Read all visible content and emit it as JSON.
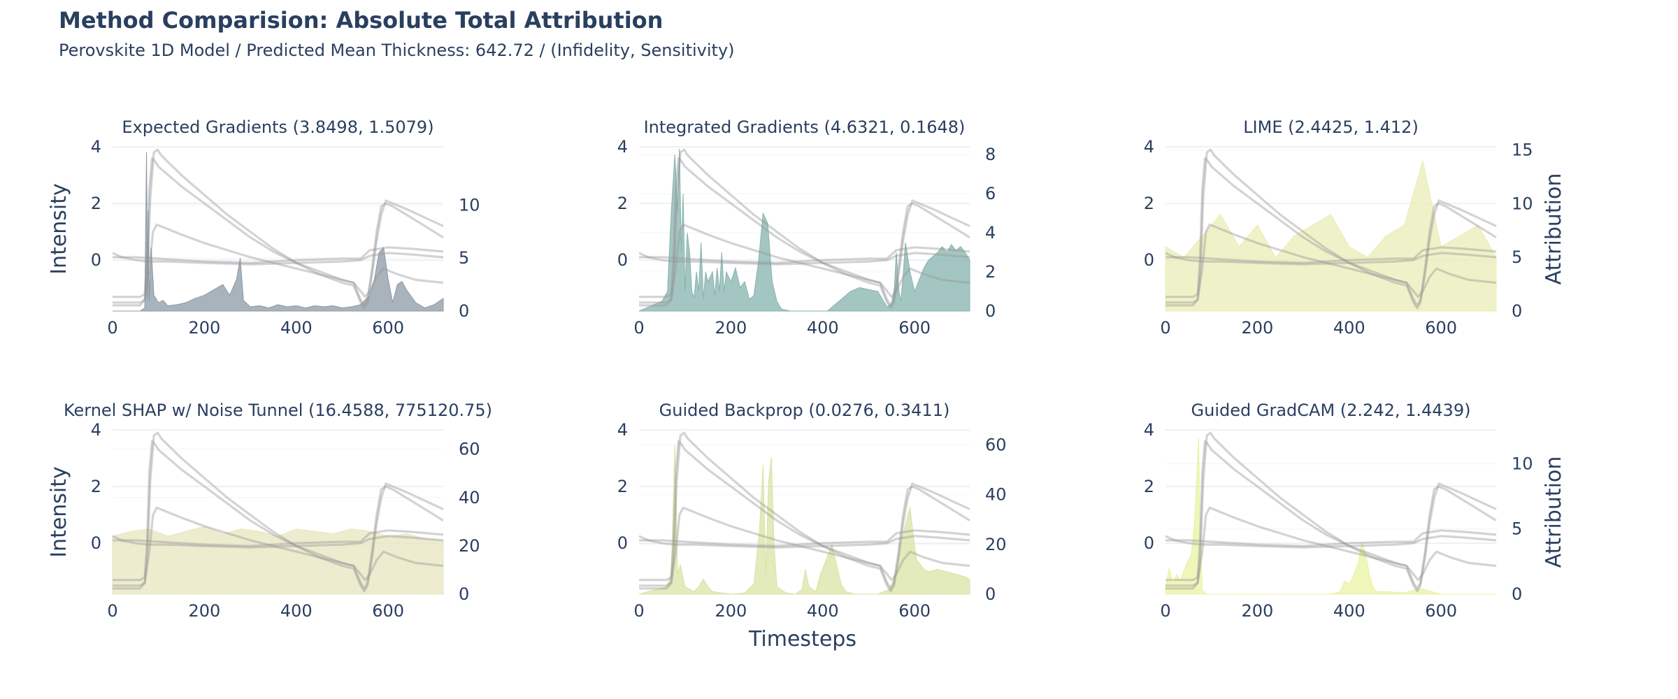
{
  "figure": {
    "title": "Method Comparision: Absolute Total Attribution",
    "subtitle": "Perovskite 1D Model / Predicted Mean Thickness: 642.72 / (Infidelity, Sensitivity)",
    "xlabel": "Timesteps",
    "ylabel_left": "Intensity",
    "ylabel_right": "Attribution"
  },
  "chart_data": [
    {
      "type": "area",
      "title": "Expected Gradients (3.8498, 1.5079)",
      "method": "Expected Gradients",
      "infidelity": 3.8498,
      "sensitivity": 1.5079,
      "xlim": [
        0,
        720
      ],
      "x_ticks": [
        0,
        200,
        400,
        600
      ],
      "y_left_ticks": [
        0,
        2,
        4
      ],
      "y_left_range": [
        -1.8,
        4.0
      ],
      "y_right_ticks": [
        0,
        5,
        10
      ],
      "y_right_range": [
        0,
        15.5
      ],
      "ylabel_left": "Intensity",
      "ylabel_right": "",
      "fill_color": "#8c99a6",
      "attribution": {
        "x": [
          0,
          60,
          70,
          74,
          76,
          78,
          80,
          84,
          90,
          100,
          110,
          120,
          140,
          160,
          180,
          200,
          220,
          240,
          255,
          270,
          278,
          285,
          300,
          320,
          340,
          360,
          380,
          400,
          420,
          440,
          460,
          480,
          500,
          520,
          540,
          560,
          570,
          580,
          590,
          600,
          610,
          620,
          630,
          640,
          660,
          680,
          700,
          720
        ],
        "y": [
          0,
          0,
          0.3,
          15,
          1,
          9.5,
          1,
          6,
          1.5,
          0.8,
          1.0,
          0.5,
          0.6,
          0.8,
          1.2,
          1.5,
          2.0,
          2.5,
          1.5,
          3.0,
          5.0,
          1.0,
          0.4,
          0.5,
          0.3,
          0.6,
          0.4,
          0.5,
          0.3,
          0.5,
          0.4,
          0.5,
          0.3,
          0.4,
          0.6,
          1.5,
          3.0,
          5.5,
          6.0,
          3.0,
          0.8,
          2.5,
          2.8,
          2.0,
          0.8,
          0.3,
          0.6,
          1.2
        ]
      }
    },
    {
      "type": "area",
      "title": "Integrated Gradients (4.6321, 0.1648)",
      "method": "Integrated Gradients",
      "infidelity": 4.6321,
      "sensitivity": 0.1648,
      "xlim": [
        0,
        720
      ],
      "x_ticks": [
        0,
        200,
        400,
        600
      ],
      "y_left_ticks": [
        0,
        2,
        4
      ],
      "y_left_range": [
        -1.8,
        4.0
      ],
      "y_right_ticks": [
        0,
        2,
        4,
        6,
        8
      ],
      "y_right_range": [
        0,
        8.4
      ],
      "ylabel_left": "",
      "ylabel_right": "",
      "fill_color": "#86b3ad",
      "attribution": {
        "x": [
          0,
          30,
          50,
          62,
          70,
          78,
          84,
          88,
          92,
          96,
          100,
          105,
          110,
          115,
          120,
          125,
          130,
          135,
          140,
          145,
          150,
          160,
          165,
          170,
          175,
          180,
          185,
          190,
          200,
          210,
          220,
          230,
          240,
          250,
          260,
          270,
          280,
          290,
          300,
          310,
          330,
          350,
          380,
          410,
          420,
          440,
          460,
          480,
          500,
          520,
          530,
          540,
          550,
          556,
          560,
          566,
          570,
          575,
          580,
          590,
          600,
          610,
          620,
          630,
          640,
          650,
          660,
          670,
          680,
          690,
          700,
          710,
          720
        ],
        "y": [
          0,
          0.3,
          0.5,
          1.0,
          5.0,
          8.0,
          5.0,
          8.3,
          3.0,
          6.0,
          1.0,
          4.0,
          3.0,
          1.0,
          0.7,
          2.0,
          1.0,
          3.5,
          0.6,
          2.0,
          1.5,
          2.0,
          0.8,
          2.2,
          1.0,
          3.0,
          1.0,
          2.0,
          1.5,
          2.2,
          1.2,
          1.5,
          0.6,
          0.8,
          2.5,
          5.0,
          4.5,
          1.5,
          0.5,
          0.1,
          0,
          0,
          0,
          0,
          0.2,
          0.6,
          1.0,
          1.2,
          1.1,
          1.0,
          0.6,
          0.2,
          0.4,
          1.2,
          3.0,
          1.0,
          0.5,
          1.8,
          3.5,
          2.0,
          1.0,
          1.6,
          2.2,
          2.6,
          2.8,
          3.0,
          3.3,
          3.0,
          3.4,
          3.1,
          3.3,
          3.0,
          2.6
        ]
      }
    },
    {
      "type": "area",
      "title": "LIME (2.4425, 1.412)",
      "method": "LIME",
      "infidelity": 2.4425,
      "sensitivity": 1.412,
      "xlim": [
        0,
        720
      ],
      "x_ticks": [
        0,
        200,
        400,
        600
      ],
      "y_left_ticks": [
        0,
        2,
        4
      ],
      "y_left_range": [
        -1.8,
        4.0
      ],
      "y_right_ticks": [
        0,
        5,
        10,
        15
      ],
      "y_right_range": [
        0,
        15.3
      ],
      "ylabel_left": "",
      "ylabel_right": "Attribution",
      "fill_color": "#eaedb6",
      "attribution": {
        "x": [
          0,
          40,
          80,
          120,
          160,
          200,
          240,
          280,
          320,
          360,
          400,
          440,
          480,
          520,
          560,
          600,
          640,
          680,
          720
        ],
        "y": [
          6,
          5,
          7,
          9,
          6,
          8,
          5,
          7,
          8,
          9,
          6,
          5,
          7,
          8,
          14,
          6,
          7,
          8,
          5
        ]
      }
    },
    {
      "type": "area",
      "title": "Kernel SHAP w/ Noise Tunnel (16.4588, 775120.75)",
      "method": "Kernel SHAP w/ Noise Tunnel",
      "infidelity": 16.4588,
      "sensitivity": 775120.75,
      "xlim": [
        0,
        720
      ],
      "x_ticks": [
        0,
        200,
        400,
        600
      ],
      "y_left_ticks": [
        0,
        2,
        4
      ],
      "y_left_range": [
        -1.8,
        4.0
      ],
      "y_right_ticks": [
        0,
        20,
        40,
        60
      ],
      "y_right_range": [
        0,
        68
      ],
      "ylabel_left": "Intensity",
      "ylabel_right": "",
      "fill_color": "#e7e6bf",
      "attribution": {
        "x": [
          0,
          40,
          80,
          120,
          160,
          200,
          240,
          280,
          320,
          360,
          400,
          440,
          480,
          520,
          560,
          600,
          640,
          680,
          720
        ],
        "y": [
          24,
          26,
          27,
          24,
          26,
          28,
          25,
          27,
          26,
          24,
          27,
          26,
          25,
          27,
          26,
          24,
          25,
          23,
          22
        ]
      }
    },
    {
      "type": "area",
      "title": "Guided Backprop (0.0276, 0.3411)",
      "method": "Guided Backprop",
      "infidelity": 0.0276,
      "sensitivity": 0.3411,
      "xlim": [
        0,
        720
      ],
      "x_ticks": [
        0,
        200,
        400,
        600
      ],
      "y_left_ticks": [
        0,
        2,
        4
      ],
      "y_left_range": [
        -1.8,
        4.0
      ],
      "y_right_ticks": [
        0,
        20,
        40,
        60
      ],
      "y_right_range": [
        0,
        66
      ],
      "ylabel_left": "",
      "ylabel_right": "",
      "fill_color": "#d9e3a4",
      "attribution": {
        "x": [
          0,
          20,
          40,
          60,
          70,
          78,
          84,
          90,
          100,
          120,
          130,
          140,
          150,
          160,
          200,
          230,
          250,
          262,
          270,
          276,
          282,
          288,
          294,
          300,
          320,
          340,
          355,
          362,
          370,
          385,
          395,
          410,
          420,
          430,
          440,
          450,
          470,
          490,
          520,
          545,
          560,
          570,
          580,
          590,
          598,
          604,
          612,
          620,
          630,
          650,
          670,
          690,
          710,
          720
        ],
        "y": [
          0,
          1,
          2,
          3,
          8,
          60,
          8,
          12,
          3,
          1,
          3,
          6,
          3,
          1,
          0,
          0.5,
          4,
          25,
          52,
          8,
          45,
          55,
          20,
          3,
          0.5,
          0,
          2,
          10,
          3,
          1,
          8,
          15,
          20,
          12,
          4,
          1,
          0,
          0,
          0,
          2,
          8,
          20,
          28,
          35,
          22,
          14,
          12,
          10,
          9,
          10,
          9,
          8,
          7,
          6
        ]
      }
    },
    {
      "type": "area",
      "title": "Guided GradCAM (2.242, 1.4439)",
      "method": "Guided GradCAM",
      "infidelity": 2.242,
      "sensitivity": 1.4439,
      "xlim": [
        0,
        720
      ],
      "x_ticks": [
        0,
        200,
        400,
        600
      ],
      "y_left_ticks": [
        0,
        2,
        4
      ],
      "y_left_range": [
        -1.8,
        4.0
      ],
      "y_right_ticks": [
        0,
        5,
        10
      ],
      "y_right_range": [
        0,
        12.6
      ],
      "ylabel_left": "",
      "ylabel_right": "Attribution",
      "fill_color": "#eaf3a3",
      "attribution": {
        "x": [
          0,
          8,
          16,
          24,
          32,
          40,
          48,
          56,
          62,
          68,
          72,
          76,
          80,
          90,
          100,
          200,
          300,
          360,
          380,
          390,
          400,
          410,
          420,
          428,
          436,
          444,
          452,
          460,
          480,
          520,
          540,
          560,
          580,
          600,
          720
        ],
        "y": [
          0.5,
          2.0,
          0.8,
          1.5,
          1.0,
          1.8,
          2.5,
          3.0,
          5.0,
          9.0,
          12.0,
          4.0,
          0.3,
          0,
          0,
          0,
          0,
          0,
          0.2,
          1.0,
          0.8,
          1.5,
          2.5,
          4.0,
          3.0,
          1.5,
          0.5,
          0.2,
          0.2,
          0.1,
          0.3,
          0.4,
          0.2,
          0,
          0
        ]
      }
    }
  ],
  "signals": {
    "note_shared": "Grey intensity traces drawn identically in each subplot (left axis, data units).",
    "series": [
      {
        "x": [
          0,
          60,
          70,
          75,
          80,
          86,
          92,
          100,
          150,
          200,
          250,
          300,
          350,
          400,
          450,
          500,
          525,
          540,
          548,
          555,
          565,
          575,
          585,
          595,
          610,
          640,
          680,
          720
        ],
        "y": [
          -1.3,
          -1.3,
          -1.2,
          0.0,
          2.5,
          3.6,
          3.5,
          3.3,
          2.6,
          2.0,
          1.4,
          0.8,
          0.3,
          -0.1,
          -0.4,
          -0.7,
          -0.8,
          -1.4,
          -1.6,
          -1.4,
          -0.3,
          1.0,
          1.9,
          2.0,
          1.9,
          1.6,
          1.2,
          0.8
        ]
      },
      {
        "x": [
          0,
          60,
          70,
          76,
          82,
          90,
          98,
          106,
          150,
          200,
          250,
          300,
          350,
          400,
          450,
          500,
          525,
          540,
          548,
          555,
          565,
          575,
          585,
          595,
          610,
          640,
          680,
          720
        ],
        "y": [
          -1.6,
          -1.6,
          -1.4,
          -0.4,
          2.2,
          3.8,
          3.9,
          3.7,
          3.0,
          2.3,
          1.6,
          1.0,
          0.4,
          -0.1,
          -0.5,
          -0.8,
          -0.9,
          -1.5,
          -1.7,
          -1.5,
          -0.5,
          0.7,
          1.6,
          2.1,
          2.0,
          1.8,
          1.5,
          1.2
        ]
      },
      {
        "x": [
          0,
          60,
          70,
          80,
          88,
          96,
          104,
          150,
          200,
          250,
          300,
          350,
          400,
          450,
          500,
          525,
          540,
          550,
          560,
          575,
          590,
          620,
          660,
          720
        ],
        "y": [
          -1.5,
          -1.5,
          -1.4,
          -0.3,
          1.0,
          1.25,
          1.2,
          0.9,
          0.6,
          0.35,
          0.1,
          -0.1,
          -0.3,
          -0.5,
          -0.7,
          -0.8,
          -1.1,
          -1.3,
          -1.1,
          -0.6,
          -0.3,
          -0.5,
          -0.7,
          -0.8
        ]
      },
      {
        "x": [
          0,
          20,
          50,
          80,
          120,
          200,
          300,
          400,
          500,
          540,
          560,
          600,
          650,
          720
        ],
        "y": [
          0.25,
          0.1,
          0.0,
          -0.05,
          -0.05,
          -0.1,
          -0.15,
          -0.1,
          -0.05,
          0.0,
          0.15,
          0.25,
          0.2,
          0.1
        ]
      },
      {
        "x": [
          0,
          50,
          100,
          200,
          300,
          400,
          500,
          540,
          560,
          600,
          650,
          720
        ],
        "y": [
          0.1,
          0.1,
          0.05,
          -0.05,
          -0.1,
          0.0,
          0.05,
          0.05,
          0.35,
          0.45,
          0.4,
          0.3
        ]
      }
    ]
  }
}
